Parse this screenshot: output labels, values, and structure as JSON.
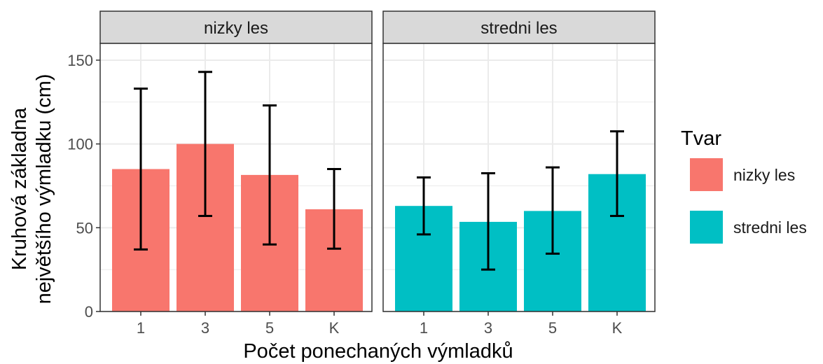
{
  "colors": {
    "nizky les": "#F8766D",
    "stredni les": "#00BFC4",
    "strip_fill": "#D9D9D9",
    "panel_border": "#333333",
    "grid": "#EBEBEB"
  },
  "chart_data": {
    "type": "bar",
    "xlabel": "Počet ponechaných výmladků",
    "ylabel_lines": [
      "Kruhová základna",
      "největšího výmladku (cm)"
    ],
    "ylim": [
      0,
      160
    ],
    "yticks": [
      0,
      50,
      100,
      150
    ],
    "categories": [
      "1",
      "3",
      "5",
      "K"
    ],
    "grid": true,
    "legend": {
      "title": "Tvar",
      "position": "right",
      "entries": [
        "nizky les",
        "stredni les"
      ]
    },
    "panels": [
      {
        "name": "nizky les",
        "fill": "nizky les",
        "values": [
          85,
          100,
          81.5,
          61
        ],
        "error_low": [
          37,
          57,
          40,
          37.5
        ],
        "error_high": [
          133,
          143,
          123,
          85
        ]
      },
      {
        "name": "stredni les",
        "fill": "stredni les",
        "values": [
          63,
          53.5,
          60,
          82
        ],
        "error_low": [
          46,
          25,
          34.5,
          57
        ],
        "error_high": [
          80,
          82.5,
          86,
          107.5
        ]
      }
    ]
  }
}
